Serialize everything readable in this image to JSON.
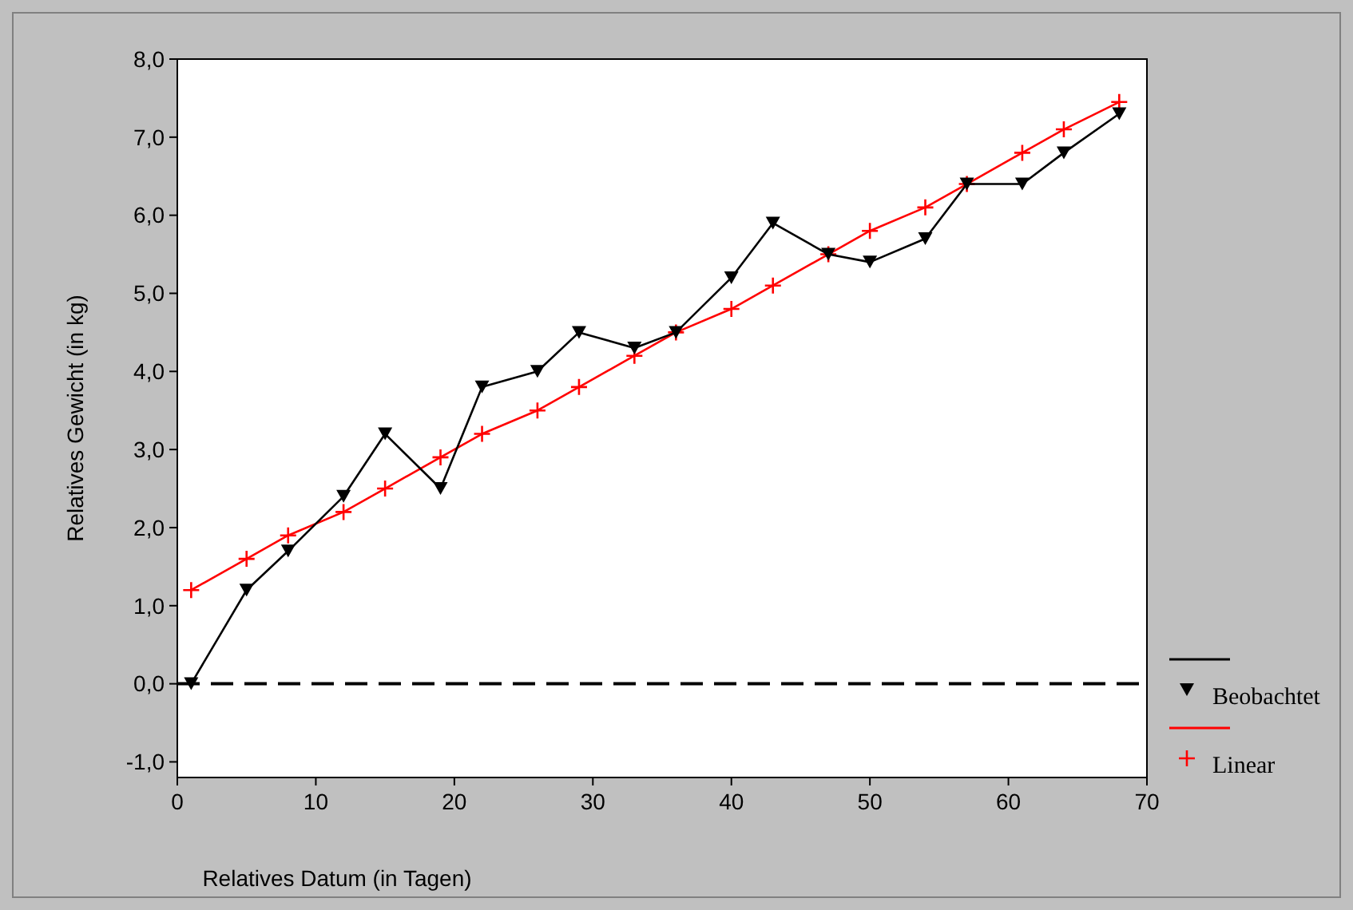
{
  "chart_data": {
    "type": "line",
    "xlabel": "Relatives Datum (in Tagen)",
    "ylabel": "Relatives Gewicht (in kg)",
    "x": [
      1,
      5,
      8,
      12,
      15,
      19,
      22,
      26,
      29,
      33,
      36,
      40,
      43,
      47,
      50,
      54,
      57,
      61,
      64,
      68
    ],
    "series": [
      {
        "name": "Beobachtet",
        "color": "#000000",
        "marker": "triangle",
        "values": [
          0.0,
          1.2,
          1.7,
          2.4,
          3.2,
          2.5,
          3.8,
          4.0,
          4.5,
          4.3,
          4.5,
          5.2,
          5.9,
          5.5,
          5.4,
          5.7,
          6.4,
          6.4,
          6.8,
          7.3
        ]
      },
      {
        "name": "Linear",
        "color": "#ff0000",
        "marker": "cross",
        "values": [
          1.2,
          1.6,
          1.9,
          2.2,
          2.5,
          2.9,
          3.2,
          3.5,
          3.8,
          4.2,
          4.5,
          4.8,
          5.1,
          5.5,
          5.8,
          6.1,
          6.4,
          6.8,
          7.1,
          7.45
        ]
      }
    ],
    "xlim": [
      0,
      70
    ],
    "xticks": [
      0,
      10,
      20,
      30,
      40,
      50,
      60,
      70
    ],
    "ylim": [
      -1.2,
      8
    ],
    "yticks": [
      {
        "value": -1,
        "label": "-1,0"
      },
      {
        "value": 0,
        "label": "0,0"
      },
      {
        "value": 1,
        "label": "1,0"
      },
      {
        "value": 2,
        "label": "2,0"
      },
      {
        "value": 3,
        "label": "3,0"
      },
      {
        "value": 4,
        "label": "4,0"
      },
      {
        "value": 5,
        "label": "5,0"
      },
      {
        "value": 6,
        "label": "6,0"
      },
      {
        "value": 7,
        "label": "7,0"
      },
      {
        "value": 8,
        "label": "8,0"
      }
    ],
    "ref_lines": [
      {
        "axis": "y",
        "value": 0,
        "color": "#000000",
        "line_style": "dashed"
      }
    ],
    "grid": false,
    "legend": "right",
    "line_style": "solid"
  }
}
